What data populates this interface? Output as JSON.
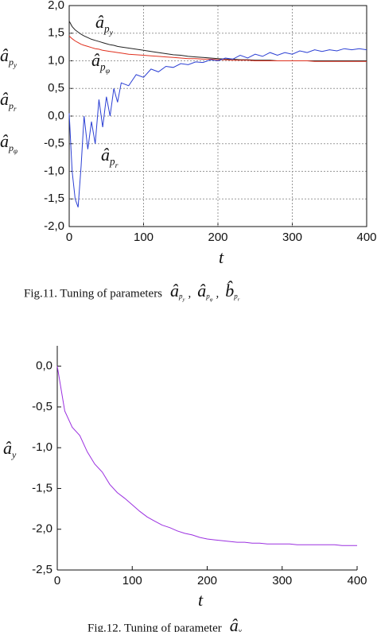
{
  "chart_data": [
    {
      "type": "line",
      "x": [
        0,
        4,
        8,
        12,
        16,
        20,
        25,
        30,
        35,
        40,
        45,
        50,
        55,
        60,
        65,
        70,
        80,
        90,
        100,
        110,
        120,
        130,
        140,
        150,
        160,
        170,
        180,
        190,
        200,
        210,
        220,
        230,
        240,
        250,
        260,
        270,
        280,
        290,
        300,
        310,
        320,
        330,
        340,
        350,
        360,
        370,
        380,
        390,
        400
      ],
      "series": [
        {
          "name": {
            "text": "â",
            "sub": "p",
            "subsub": "y"
          },
          "color": "#222222",
          "values": [
            1.72,
            1.62,
            1.56,
            1.52,
            1.48,
            1.45,
            1.42,
            1.39,
            1.37,
            1.35,
            1.33,
            1.31,
            1.29,
            1.28,
            1.26,
            1.25,
            1.23,
            1.21,
            1.19,
            1.17,
            1.15,
            1.13,
            1.11,
            1.1,
            1.08,
            1.07,
            1.06,
            1.05,
            1.04,
            1.03,
            1.03,
            1.02,
            1.02,
            1.01,
            1.01,
            1.01,
            1.0,
            1.0,
            1.0,
            1.0,
            1.0,
            1.0,
            1.0,
            1.0,
            1.0,
            1.0,
            1.0,
            1.0,
            1.0
          ]
        },
        {
          "name": {
            "text": "â",
            "sub": "p",
            "subsub": "φ"
          },
          "color": "#e0301e",
          "values": [
            1.45,
            1.4,
            1.36,
            1.33,
            1.3,
            1.28,
            1.26,
            1.24,
            1.22,
            1.21,
            1.19,
            1.18,
            1.17,
            1.16,
            1.15,
            1.14,
            1.12,
            1.11,
            1.1,
            1.09,
            1.08,
            1.07,
            1.06,
            1.05,
            1.04,
            1.04,
            1.03,
            1.03,
            1.02,
            1.02,
            1.01,
            1.01,
            1.01,
            1.0,
            1.0,
            1.0,
            1.0,
            1.0,
            1.0,
            1.0,
            1.0,
            0.99,
            0.99,
            0.99,
            0.99,
            0.99,
            0.99,
            0.99,
            0.99
          ]
        },
        {
          "name": {
            "text": "â",
            "sub": "p",
            "subsub": "r"
          },
          "color": "#2b3fd4",
          "values": [
            0.05,
            -1.0,
            -1.5,
            -1.65,
            -0.9,
            0.0,
            -0.6,
            -0.1,
            -0.5,
            0.3,
            -0.2,
            0.35,
            0.0,
            0.5,
            0.25,
            0.6,
            0.55,
            0.75,
            0.7,
            0.85,
            0.8,
            0.9,
            0.88,
            0.95,
            0.93,
            0.98,
            0.97,
            1.02,
            1.0,
            1.05,
            1.03,
            1.1,
            1.05,
            1.12,
            1.08,
            1.15,
            1.1,
            1.15,
            1.12,
            1.18,
            1.15,
            1.2,
            1.17,
            1.2,
            1.18,
            1.22,
            1.2,
            1.22,
            1.2
          ]
        }
      ],
      "label_positions": [
        "upper",
        "middle",
        "lower"
      ],
      "xlim": [
        0,
        400
      ],
      "xticks": [
        0,
        100,
        200,
        300,
        400
      ],
      "ylim": [
        -2,
        2
      ],
      "yticks": [
        {
          "value": -2,
          "label": "-2,0"
        },
        {
          "value": -1.5,
          "label": "-1,5"
        },
        {
          "value": -1,
          "label": "-1,0"
        },
        {
          "value": -0.5,
          "label": "-0,5"
        },
        {
          "value": 0,
          "label": "0,0"
        },
        {
          "value": 0.5,
          "label": "0,5"
        },
        {
          "value": 1,
          "label": "1,0"
        },
        {
          "value": 1.5,
          "label": "1,5"
        },
        {
          "value": 2,
          "label": "2,0"
        }
      ],
      "grid": true,
      "box": true,
      "x_label": "t",
      "y_label": [
        {
          "text": "â",
          "sub": "p",
          "subsub": "y"
        },
        {
          "text": "â",
          "sub": "p",
          "subsub": "r"
        },
        {
          "text": "â",
          "sub": "p",
          "subsub": "φ"
        }
      ],
      "caption": "Fig.11. Tuning of parameters",
      "caption_symbols": [
        {
          "text": "â",
          "sub": "p",
          "subsub": "y"
        },
        {
          "text": "â",
          "sub": "p",
          "subsub": "φ"
        },
        {
          "text": "b̂",
          "sub": "p",
          "subsub": "r"
        }
      ],
      "caption_separator": ","
    },
    {
      "type": "line",
      "x": [
        0,
        10,
        20,
        30,
        40,
        50,
        60,
        70,
        80,
        90,
        100,
        110,
        120,
        130,
        140,
        150,
        160,
        170,
        180,
        190,
        200,
        210,
        220,
        230,
        240,
        250,
        260,
        270,
        280,
        290,
        300,
        310,
        320,
        330,
        340,
        350,
        360,
        370,
        380,
        390,
        400
      ],
      "series": [
        {
          "color": "#9b30e0",
          "values": [
            0,
            -0.55,
            -0.75,
            -0.85,
            -1.05,
            -1.2,
            -1.3,
            -1.45,
            -1.55,
            -1.62,
            -1.7,
            -1.78,
            -1.85,
            -1.9,
            -1.95,
            -1.98,
            -2.02,
            -2.05,
            -2.07,
            -2.1,
            -2.12,
            -2.13,
            -2.14,
            -2.15,
            -2.16,
            -2.16,
            -2.17,
            -2.17,
            -2.18,
            -2.18,
            -2.18,
            -2.18,
            -2.19,
            -2.19,
            -2.19,
            -2.19,
            -2.19,
            -2.19,
            -2.2,
            -2.2,
            -2.2
          ]
        }
      ],
      "xlim": [
        0,
        400
      ],
      "xticks": [
        0,
        100,
        200,
        300,
        400
      ],
      "ylim": [
        -2.5,
        0.25
      ],
      "yticks": [
        {
          "value": -2.5,
          "label": "-2,5"
        },
        {
          "value": -2,
          "label": "-2,0"
        },
        {
          "value": -1.5,
          "label": "-1,5"
        },
        {
          "value": -1,
          "label": "-1,0"
        },
        {
          "value": -0.5,
          "label": "-0,5"
        },
        {
          "value": 0,
          "label": "0,0"
        }
      ],
      "grid": false,
      "box": false,
      "x_label": "t",
      "y_label": [
        {
          "text": "â",
          "sub": "y"
        }
      ],
      "caption": "Fig.12. Tuning of parameter",
      "caption_symbols": [
        {
          "text": "â",
          "sub": "y"
        }
      ]
    }
  ]
}
